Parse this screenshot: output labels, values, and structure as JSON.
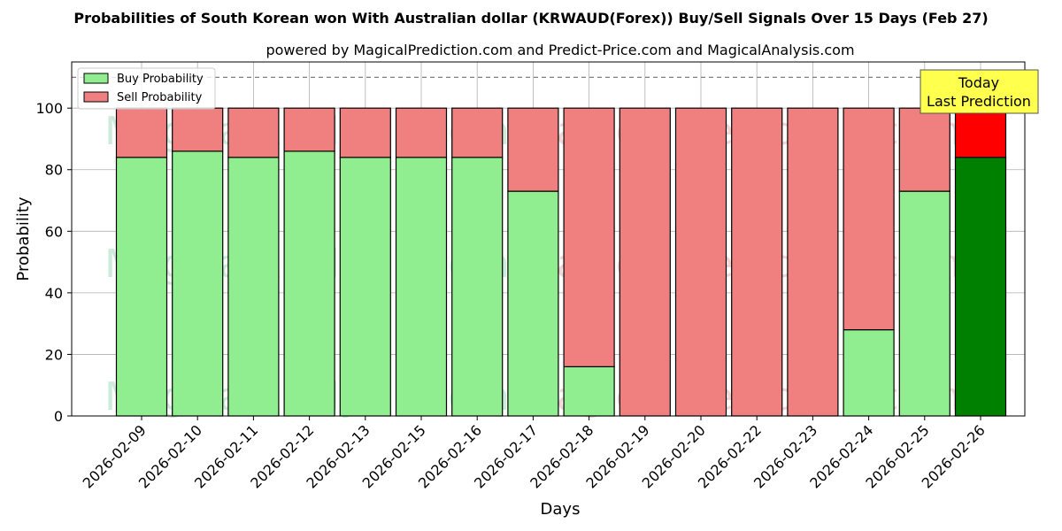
{
  "chart_data": {
    "type": "bar",
    "stacked": true,
    "title": "Probabilities of South Korean won With Australian dollar (KRWAUD(Forex)) Buy/Sell Signals Over 15 Days (Feb 27)",
    "subtitle": "powered by MagicalPrediction.com and Predict-Price.com and MagicalAnalysis.com",
    "xlabel": "Days",
    "ylabel": "Probability",
    "ylim": [
      0,
      115
    ],
    "yticks": [
      0,
      20,
      40,
      60,
      80,
      100
    ],
    "reference_line": 110,
    "grid": true,
    "legend_position": "top-left",
    "categories": [
      "2026-02-09",
      "2026-02-10",
      "2026-02-11",
      "2026-02-12",
      "2026-02-13",
      "2026-02-15",
      "2026-02-16",
      "2026-02-17",
      "2026-02-18",
      "2026-02-19",
      "2026-02-20",
      "2026-02-22",
      "2026-02-23",
      "2026-02-24",
      "2026-02-25",
      "2026-02-26"
    ],
    "series": [
      {
        "name": "Buy Probability",
        "color": "#90ee90",
        "highlight_color": "#008000",
        "values": [
          84,
          86,
          84,
          86,
          84,
          84,
          84,
          73,
          16,
          0,
          0,
          0,
          0,
          28,
          73,
          84
        ]
      },
      {
        "name": "Sell Probability",
        "color": "#f08080",
        "highlight_color": "#ff0000",
        "values": [
          16,
          14,
          16,
          14,
          16,
          16,
          16,
          27,
          84,
          100,
          100,
          100,
          100,
          72,
          27,
          16
        ]
      }
    ],
    "highlight_index": 15,
    "annotation": {
      "line1": "Today",
      "line2": "Last Prediction",
      "background": "#ffff4d"
    },
    "watermarks": [
      "MagicalAnalysis.com",
      "MagicalPrediction.com"
    ]
  }
}
